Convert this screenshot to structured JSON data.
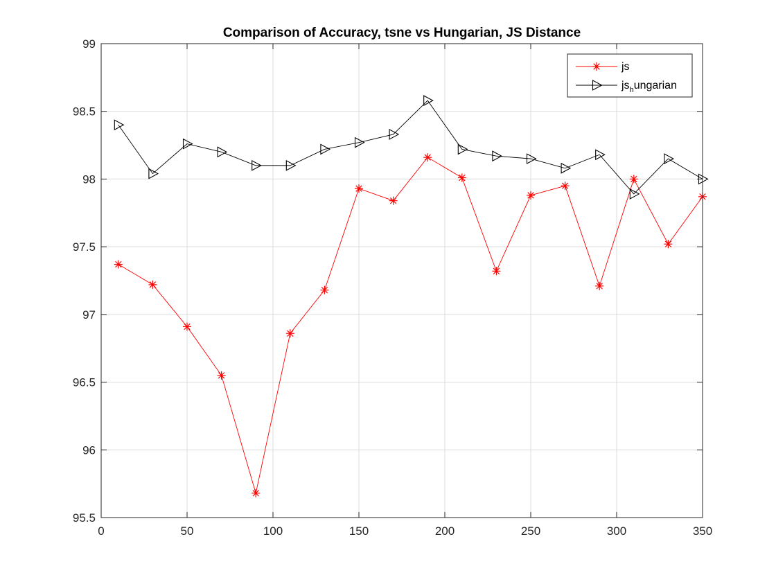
{
  "chart_data": {
    "type": "line",
    "title": "Comparison of Accuracy, tsne vs Hungarian, JS Distance",
    "xlabel": "",
    "ylabel": "",
    "xlim": [
      0,
      350
    ],
    "ylim": [
      95.5,
      99
    ],
    "xticks": [
      0,
      50,
      100,
      150,
      200,
      250,
      300,
      350
    ],
    "yticks": [
      95.5,
      96,
      96.5,
      97,
      97.5,
      98,
      98.5,
      99
    ],
    "xtick_labels": [
      "0",
      "50",
      "100",
      "150",
      "200",
      "250",
      "300",
      "350"
    ],
    "ytick_labels": [
      "95.5",
      "96",
      "96.5",
      "97",
      "97.5",
      "98",
      "98.5",
      "99"
    ],
    "grid": true,
    "legend_position": "top-right",
    "x": [
      10,
      30,
      50,
      70,
      90,
      110,
      130,
      150,
      170,
      190,
      210,
      230,
      250,
      270,
      290,
      310,
      330,
      350
    ],
    "series": [
      {
        "name": "js",
        "legend_main": "js",
        "legend_sub": "",
        "legend_rest": "",
        "color": "#ff0000",
        "marker": "asterisk",
        "values": [
          97.37,
          97.22,
          96.91,
          96.55,
          95.68,
          96.86,
          97.18,
          97.93,
          97.84,
          98.16,
          98.01,
          97.32,
          97.88,
          97.95,
          97.21,
          98.0,
          97.52,
          97.87
        ]
      },
      {
        "name": "js_hungarian",
        "legend_main": "js",
        "legend_sub": "h",
        "legend_rest": "ungarian",
        "color": "#000000",
        "marker": "triangle-right",
        "values": [
          98.4,
          98.04,
          98.26,
          98.2,
          98.1,
          98.1,
          98.22,
          98.27,
          98.33,
          98.58,
          98.22,
          98.17,
          98.15,
          98.08,
          98.18,
          97.89,
          98.15,
          98.0
        ]
      }
    ]
  }
}
